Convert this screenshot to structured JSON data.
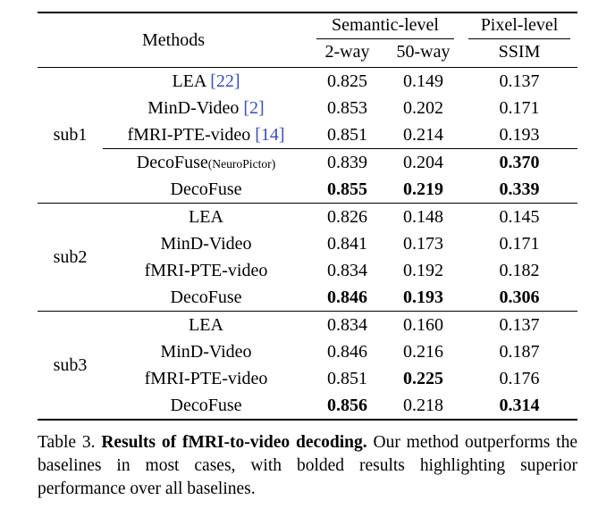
{
  "colors": {
    "citation": "#3b4cc0",
    "text": "#000000",
    "background": "#ffffff"
  },
  "table": {
    "header": {
      "methods": "Methods",
      "semantic": "Semantic-level",
      "pixel": "Pixel-level",
      "col_2way": "2-way",
      "col_50way": "50-way",
      "col_ssim": "SSIM"
    },
    "groups": [
      {
        "subject": "sub1",
        "rows": [
          {
            "method": "LEA",
            "cite": "[22]",
            "values": [
              "0.825",
              "0.149",
              "0.137"
            ],
            "bold": [
              false,
              false,
              false
            ]
          },
          {
            "method": "MinD-Video",
            "cite": "[2]",
            "values": [
              "0.853",
              "0.202",
              "0.171"
            ],
            "bold": [
              false,
              false,
              false
            ]
          },
          {
            "method": "fMRI-PTE-video",
            "cite": "[14]",
            "values": [
              "0.851",
              "0.214",
              "0.193"
            ],
            "bold": [
              false,
              false,
              false
            ]
          },
          {
            "method": "DecoFuse",
            "suffix": "(NeuroPictor)",
            "midrule": true,
            "values": [
              "0.839",
              "0.204",
              "0.370"
            ],
            "bold": [
              false,
              false,
              true
            ]
          },
          {
            "method": "DecoFuse",
            "values": [
              "0.855",
              "0.219",
              "0.339"
            ],
            "bold": [
              true,
              true,
              true
            ]
          }
        ]
      },
      {
        "subject": "sub2",
        "rows": [
          {
            "method": "LEA",
            "values": [
              "0.826",
              "0.148",
              "0.145"
            ],
            "bold": [
              false,
              false,
              false
            ]
          },
          {
            "method": "MinD-Video",
            "values": [
              "0.841",
              "0.173",
              "0.171"
            ],
            "bold": [
              false,
              false,
              false
            ]
          },
          {
            "method": "fMRI-PTE-video",
            "values": [
              "0.834",
              "0.192",
              "0.182"
            ],
            "bold": [
              false,
              false,
              false
            ]
          },
          {
            "method": "DecoFuse",
            "values": [
              "0.846",
              "0.193",
              "0.306"
            ],
            "bold": [
              true,
              true,
              true
            ]
          }
        ]
      },
      {
        "subject": "sub3",
        "rows": [
          {
            "method": "LEA",
            "values": [
              "0.834",
              "0.160",
              "0.137"
            ],
            "bold": [
              false,
              false,
              false
            ]
          },
          {
            "method": "MinD-Video",
            "values": [
              "0.846",
              "0.216",
              "0.187"
            ],
            "bold": [
              false,
              false,
              false
            ]
          },
          {
            "method": "fMRI-PTE-video",
            "values": [
              "0.851",
              "0.225",
              "0.176"
            ],
            "bold": [
              false,
              true,
              false
            ]
          },
          {
            "method": "DecoFuse",
            "values": [
              "0.856",
              "0.218",
              "0.314"
            ],
            "bold": [
              true,
              false,
              true
            ]
          }
        ]
      }
    ]
  },
  "caption": {
    "label": "Table 3. ",
    "title": "Results of fMRI-to-video decoding.",
    "text": " Our method outperforms the baselines in most cases, with bolded results highlighting superior performance over all baselines."
  }
}
